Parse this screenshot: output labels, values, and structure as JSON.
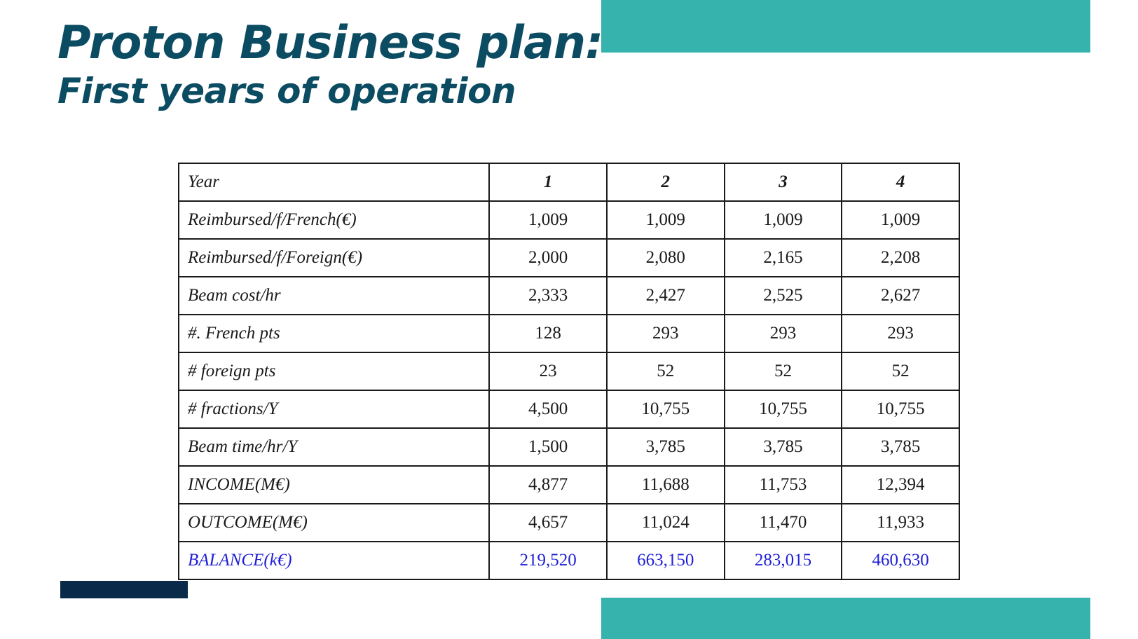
{
  "title": "Proton Business plan:",
  "subtitle": "First years of operation",
  "colors": {
    "title": "#0b4c63",
    "accent_teal": "#36b3ac",
    "accent_navy": "#0a2a4a",
    "balance_text": "#1f1fd6"
  },
  "table": {
    "header": {
      "label": "Year",
      "values": [
        "1",
        "2",
        "3",
        "4"
      ]
    },
    "rows": [
      {
        "label": "Reimbursed/f/French(€)",
        "values": [
          "1,009",
          "1,009",
          "1,009",
          "1,009"
        ]
      },
      {
        "label": "Reimbursed/f/Foreign(€)",
        "values": [
          "2,000",
          "2,080",
          "2,165",
          "2,208"
        ]
      },
      {
        "label": "Beam cost/hr",
        "values": [
          "2,333",
          "2,427",
          "2,525",
          "2,627"
        ]
      },
      {
        "label": "#. French pts",
        "values": [
          "128",
          "293",
          "293",
          "293"
        ]
      },
      {
        "label": "# foreign pts",
        "values": [
          "23",
          "52",
          "52",
          "52"
        ]
      },
      {
        "label": "# fractions/Y",
        "values": [
          "4,500",
          "10,755",
          "10,755",
          "10,755"
        ]
      },
      {
        "label": "Beam time/hr/Y",
        "values": [
          "1,500",
          "3,785",
          "3,785",
          "3,785"
        ]
      },
      {
        "label": "INCOME(M€)",
        "values": [
          "4,877",
          "11,688",
          "11,753",
          "12,394"
        ]
      },
      {
        "label": "OUTCOME(M€)",
        "values": [
          "4,657",
          "11,024",
          "11,470",
          "11,933"
        ]
      },
      {
        "label": "BALANCE(k€)",
        "values": [
          "219,520",
          "663,150",
          "283,015",
          "460,630"
        ]
      }
    ]
  }
}
